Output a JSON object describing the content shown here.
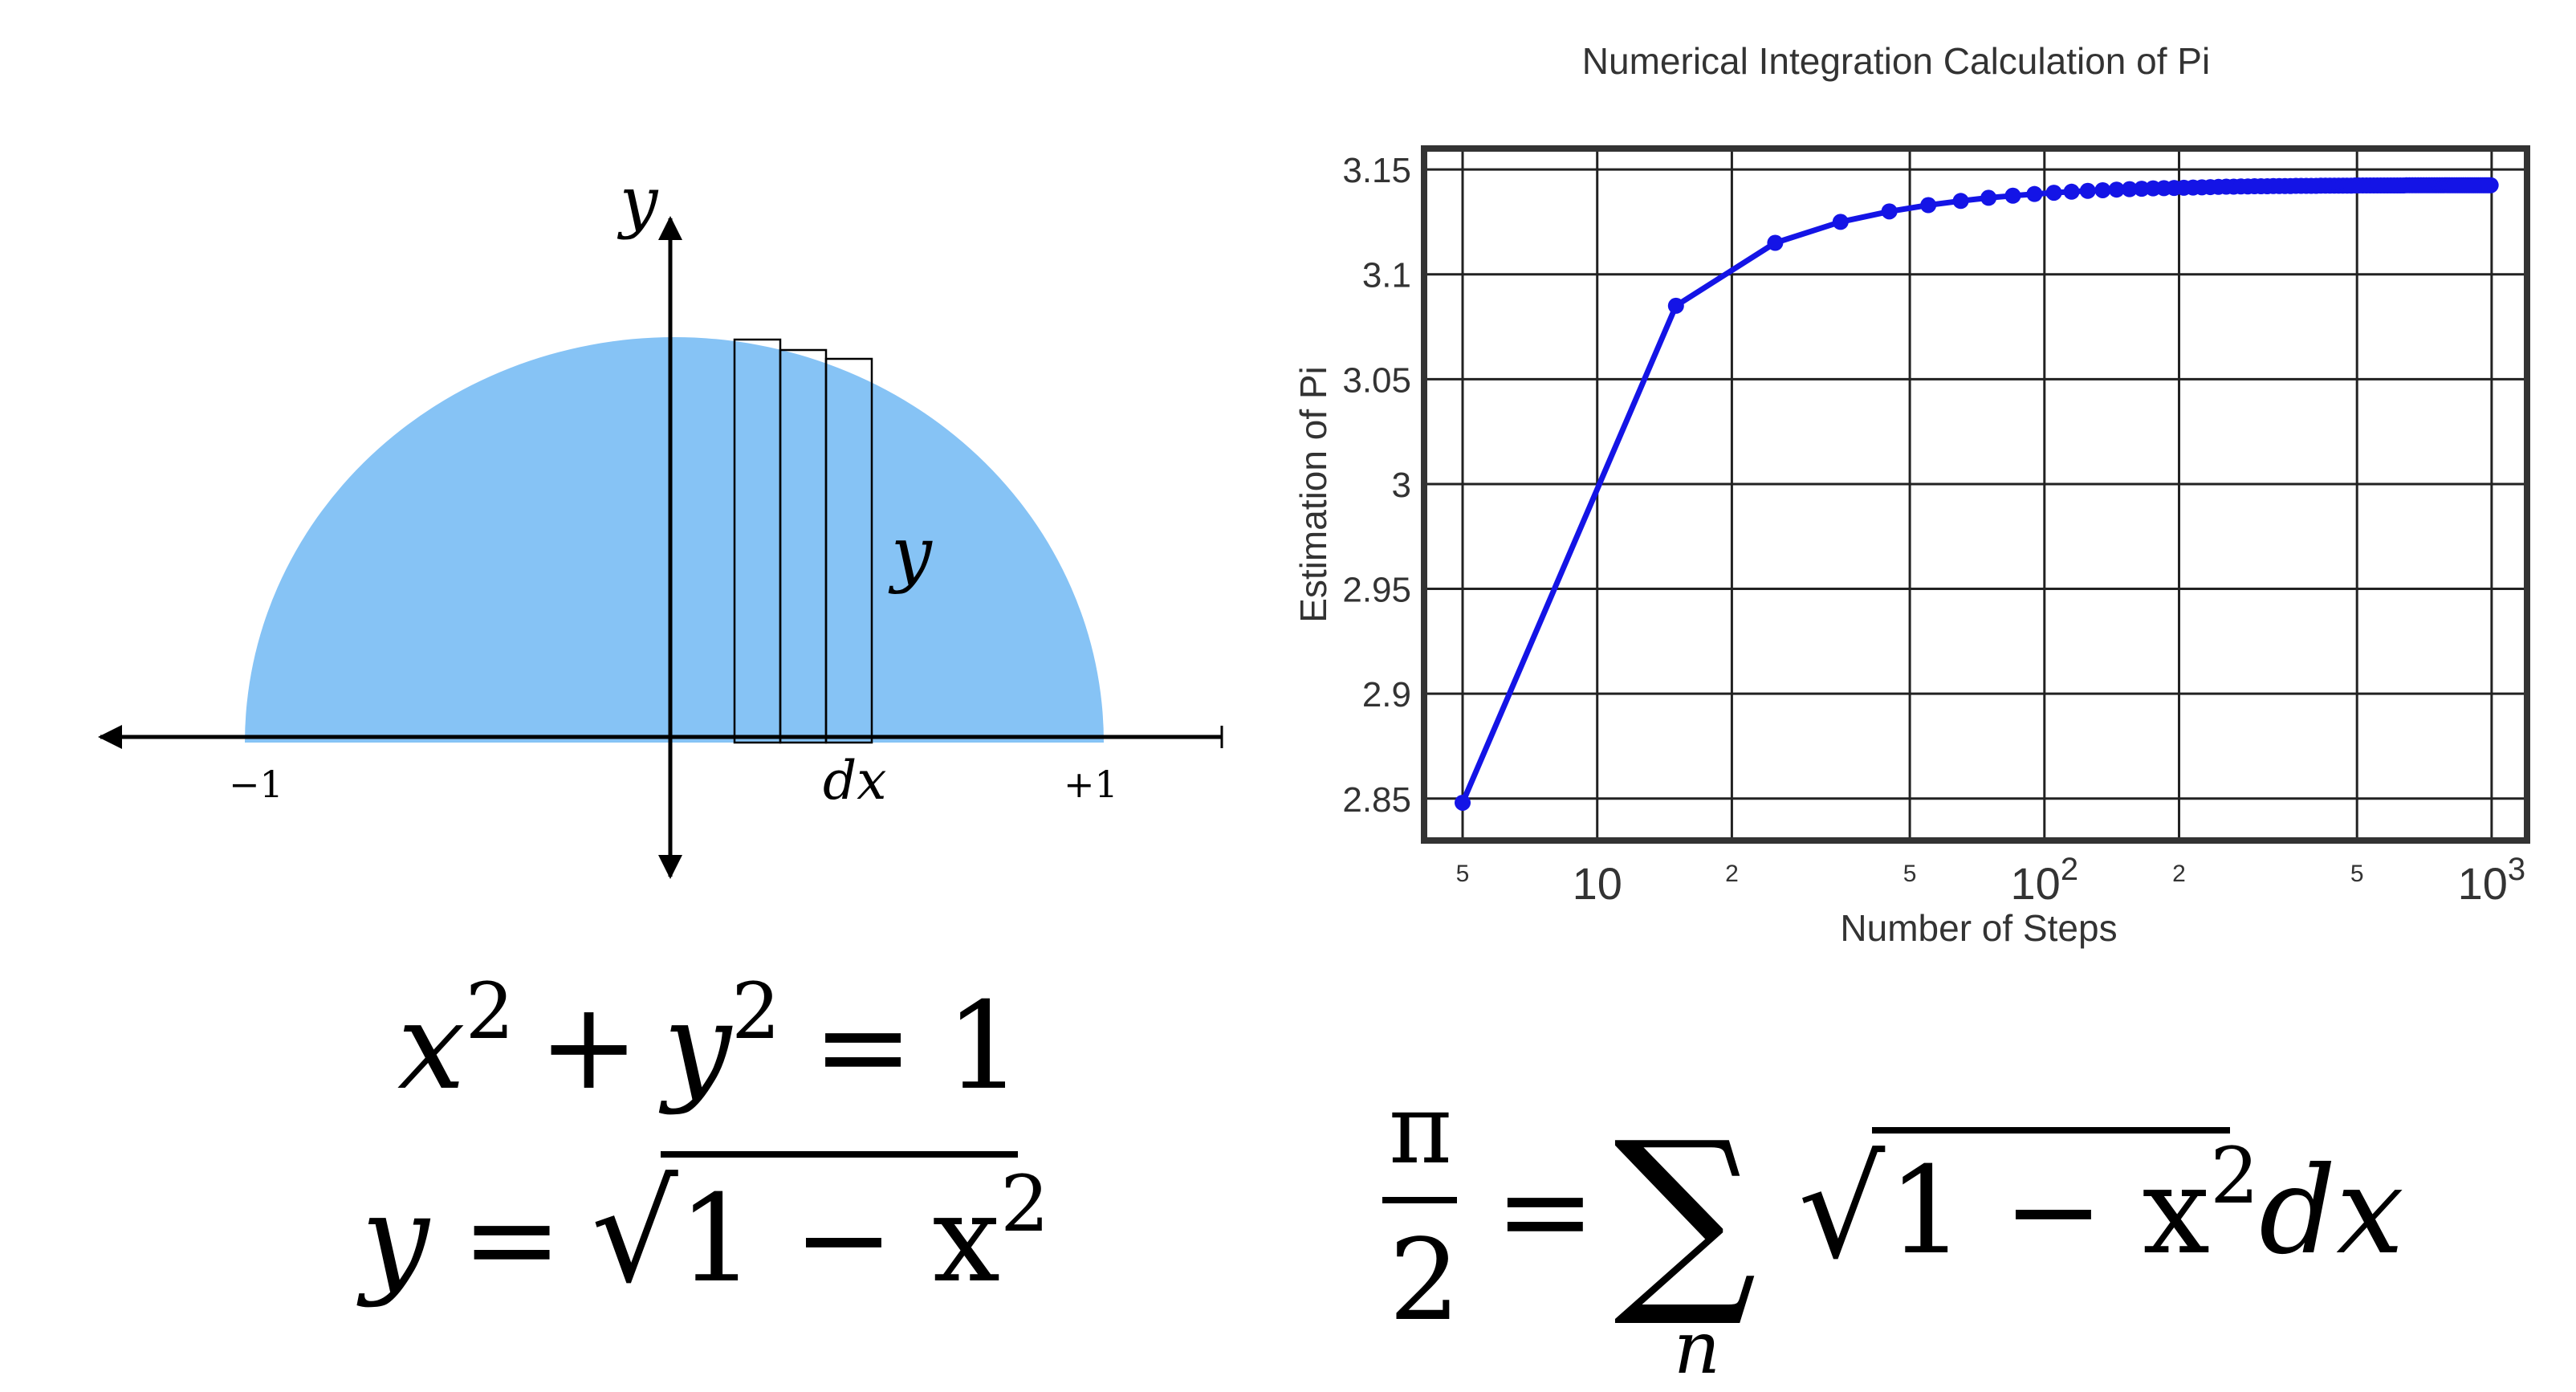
{
  "diagram": {
    "semicircle_color": "#86c3f5",
    "y_axis_label": "y",
    "strip_height_label": "y",
    "dx_label": "dx",
    "minus_one_label": "−1",
    "plus_one_label": "+1"
  },
  "equations": {
    "circle": {
      "x": "x",
      "two_a": "2",
      "plus": "+",
      "y": "y",
      "two_b": "2",
      "equals": "=",
      "one": "1"
    },
    "root": {
      "y": "y",
      "equals": "=",
      "radical": "√",
      "radicand": "1 − x",
      "two": "2"
    },
    "sum": {
      "pi": "π",
      "two": "2",
      "equals": "=",
      "sigma": "∑",
      "index": "n",
      "radical": "√",
      "radicand": "1 − x",
      "two_b": "2",
      "dx": "dx"
    }
  },
  "chart_data": {
    "type": "line",
    "title": "Numerical Integration Calculation of Pi",
    "xlabel": "Number of Steps",
    "ylabel": "Estimation of Pi",
    "x_scale": "log",
    "xlim": [
      4.1,
      1200
    ],
    "ylim": [
      2.83,
      3.16
    ],
    "grid": true,
    "line_color": "#1414e6",
    "yticks": [
      "2.85",
      "2.9",
      "2.95",
      "3",
      "3.05",
      "3.1",
      "3.15"
    ],
    "ytick_values": [
      2.85,
      2.9,
      2.95,
      3.0,
      3.05,
      3.1,
      3.15
    ],
    "xticks": [
      {
        "value": 5,
        "base": "5",
        "exp": "",
        "minor": true
      },
      {
        "value": 10,
        "base": "10",
        "exp": "",
        "minor": false
      },
      {
        "value": 20,
        "base": "2",
        "exp": "",
        "minor": true
      },
      {
        "value": 50,
        "base": "5",
        "exp": "",
        "minor": true
      },
      {
        "value": 100,
        "base": "10",
        "exp": "2",
        "minor": false
      },
      {
        "value": 200,
        "base": "2",
        "exp": "",
        "minor": true
      },
      {
        "value": 500,
        "base": "5",
        "exp": "",
        "minor": true
      },
      {
        "value": 1000,
        "base": "10",
        "exp": "3",
        "minor": false
      }
    ],
    "series": [
      {
        "x": [
          5,
          15,
          25,
          35,
          45,
          55,
          65,
          75,
          85,
          95,
          105,
          115,
          125,
          135,
          145,
          155,
          165,
          175,
          185,
          195,
          205,
          215,
          225,
          235,
          245,
          255,
          265,
          275,
          285,
          295,
          305,
          315,
          325,
          335,
          345,
          355,
          365,
          375,
          385,
          395,
          405,
          415,
          425,
          435,
          445,
          455,
          465,
          475,
          485,
          495,
          505,
          515,
          525,
          535,
          545,
          555,
          565,
          575,
          585,
          595,
          605,
          615,
          625,
          635,
          645,
          655,
          665,
          675,
          685,
          695,
          705,
          715,
          725,
          735,
          745,
          755,
          765,
          775,
          785,
          795,
          805,
          815,
          825,
          835,
          845,
          855,
          865,
          875,
          885,
          895,
          905,
          915,
          925,
          935,
          945,
          955,
          965,
          975,
          985,
          995
        ],
        "y": [
          2.848,
          3.085,
          3.115,
          3.125,
          3.13,
          3.133,
          3.135,
          3.1365,
          3.1375,
          3.1383,
          3.1389,
          3.1394,
          3.1398,
          3.1401,
          3.1404,
          3.1406,
          3.1408,
          3.141,
          3.1411,
          3.1412,
          3.1413,
          3.1414,
          3.1415,
          3.1416,
          3.1417,
          3.1418,
          3.1418,
          3.1419,
          3.1419,
          3.142,
          3.142,
          3.142,
          3.1421,
          3.1421,
          3.1421,
          3.1421,
          3.1422,
          3.1422,
          3.1422,
          3.1422,
          3.1422,
          3.1423,
          3.1423,
          3.1423,
          3.1423,
          3.1423,
          3.1423,
          3.1423,
          3.1423,
          3.1424,
          3.1424,
          3.1424,
          3.1424,
          3.1424,
          3.1424,
          3.1424,
          3.1424,
          3.1424,
          3.1424,
          3.1424,
          3.1424,
          3.1424,
          3.1424,
          3.1424,
          3.1425,
          3.1425,
          3.1425,
          3.1425,
          3.1425,
          3.1425,
          3.1425,
          3.1425,
          3.1425,
          3.1425,
          3.1425,
          3.1425,
          3.1425,
          3.1425,
          3.1425,
          3.1425,
          3.1425,
          3.1425,
          3.1425,
          3.1425,
          3.1425,
          3.1425,
          3.1425,
          3.1425,
          3.1425,
          3.1425,
          3.1425,
          3.1425,
          3.1425,
          3.1425,
          3.1425,
          3.1425,
          3.1425,
          3.1425,
          3.1425,
          3.1425
        ]
      }
    ]
  }
}
